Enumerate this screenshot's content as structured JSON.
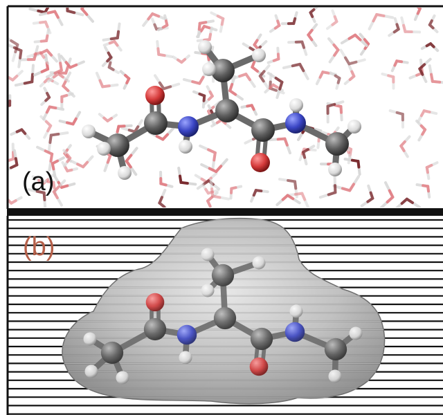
{
  "panels": {
    "a": {
      "label": "(a)",
      "label_color": "#111111"
    },
    "b": {
      "label": "(b)",
      "label_color": "#b5604a"
    }
  },
  "colors": {
    "carbon": "#5e5e5e",
    "nitrogen": "#3a45c4",
    "oxygen": "#d43a3a",
    "hydrogen": "#e6e6e6",
    "water_oxygen": "#e07a80",
    "surface": "#8f8f8f",
    "frame": "#111111"
  }
}
